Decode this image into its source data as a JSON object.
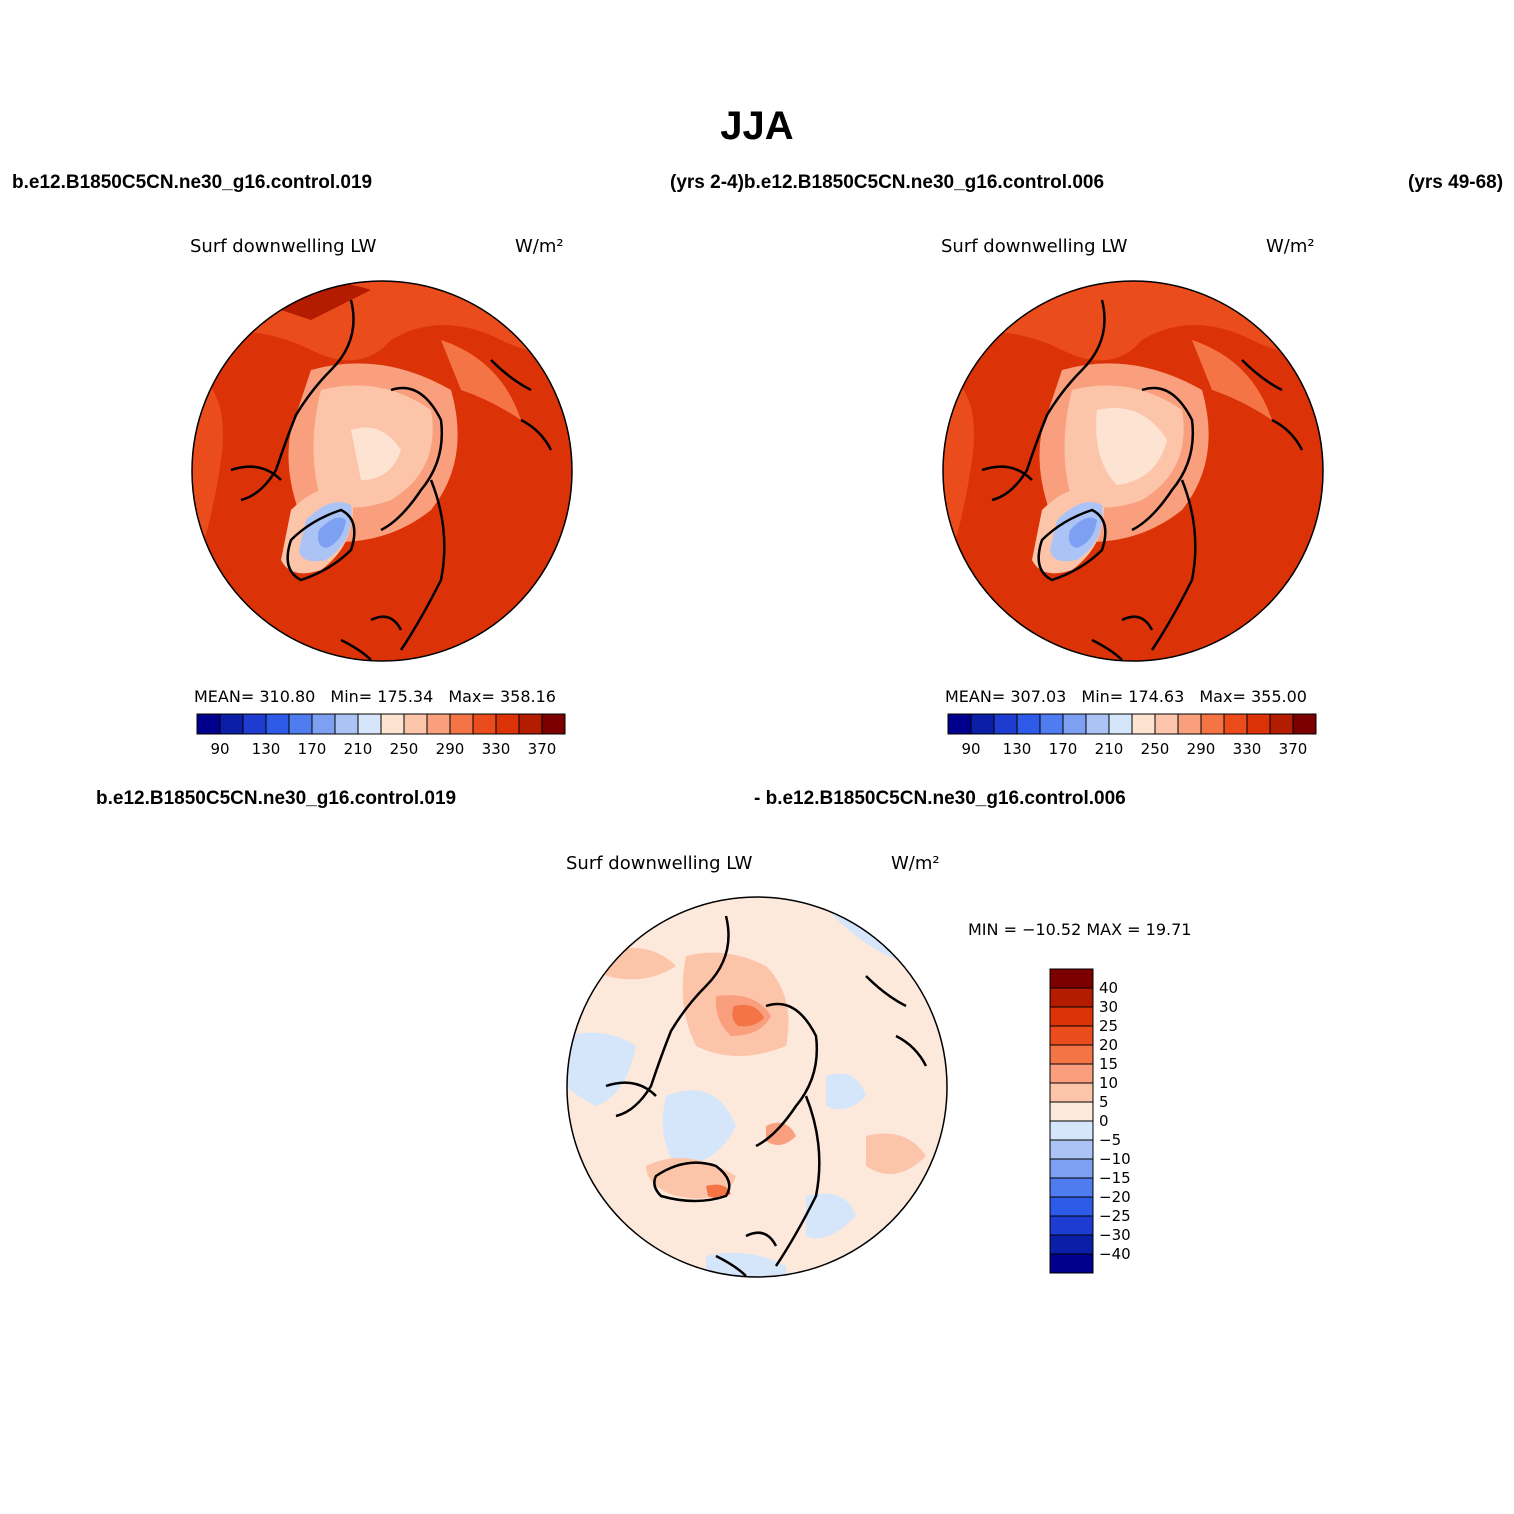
{
  "title": "JJA",
  "header": {
    "case_left": "b.e12.B1850C5CN.ne30_g16.control.019",
    "years_left_and_case_right": "(yrs 2-4)b.e12.B1850C5CN.ne30_g16.control.006",
    "years_right": "(yrs 49-68)"
  },
  "diff_header": {
    "case_a": "b.e12.B1850C5CN.ne30_g16.control.019",
    "case_b": "- b.e12.B1850C5CN.ne30_g16.control.006"
  },
  "panels": [
    {
      "variable": "Surf downwelling LW",
      "units": "W/m²",
      "mean_label": "MEAN=",
      "mean": "310.80",
      "min_label": "Min=",
      "min": "175.34",
      "max_label": "Max=",
      "max": "358.16"
    },
    {
      "variable": "Surf downwelling LW",
      "units": "W/m²",
      "mean_label": "MEAN=",
      "mean": "307.03",
      "min_label": "Min=",
      "min": "174.63",
      "max_label": "Max=",
      "max": "355.00"
    }
  ],
  "diff_panel": {
    "variable": "Surf downwelling LW",
    "units": "W/m²",
    "min_max_text": "MIN = −10.52 MAX =  19.71"
  },
  "colorbar_abs": {
    "tick_labels": [
      "90",
      "130",
      "170",
      "210",
      "250",
      "290",
      "330",
      "370"
    ],
    "colors": [
      "#00008c",
      "#0a1ea8",
      "#1e3ccf",
      "#2d5be8",
      "#4f7df0",
      "#7ea0f2",
      "#abc4f5",
      "#d6e6fa",
      "#fde4d2",
      "#fcc5aa",
      "#f99f7d",
      "#f47446",
      "#ea4c1c",
      "#dc3208",
      "#b41c00",
      "#7d0000"
    ]
  },
  "colorbar_diff": {
    "tick_labels": [
      "40",
      "30",
      "25",
      "20",
      "15",
      "10",
      "5",
      "0",
      "−5",
      "−10",
      "−15",
      "−20",
      "−25",
      "−30",
      "−40"
    ],
    "colors": [
      "#7d0000",
      "#b41c00",
      "#dc3208",
      "#ea4c1c",
      "#f47446",
      "#f99f7d",
      "#fcc5aa",
      "#fde9dc",
      "#d6e6fa",
      "#abc4f5",
      "#7ea0f2",
      "#4f7df0",
      "#2d5be8",
      "#1e3ccf",
      "#0a1ea8",
      "#00008c"
    ]
  }
}
